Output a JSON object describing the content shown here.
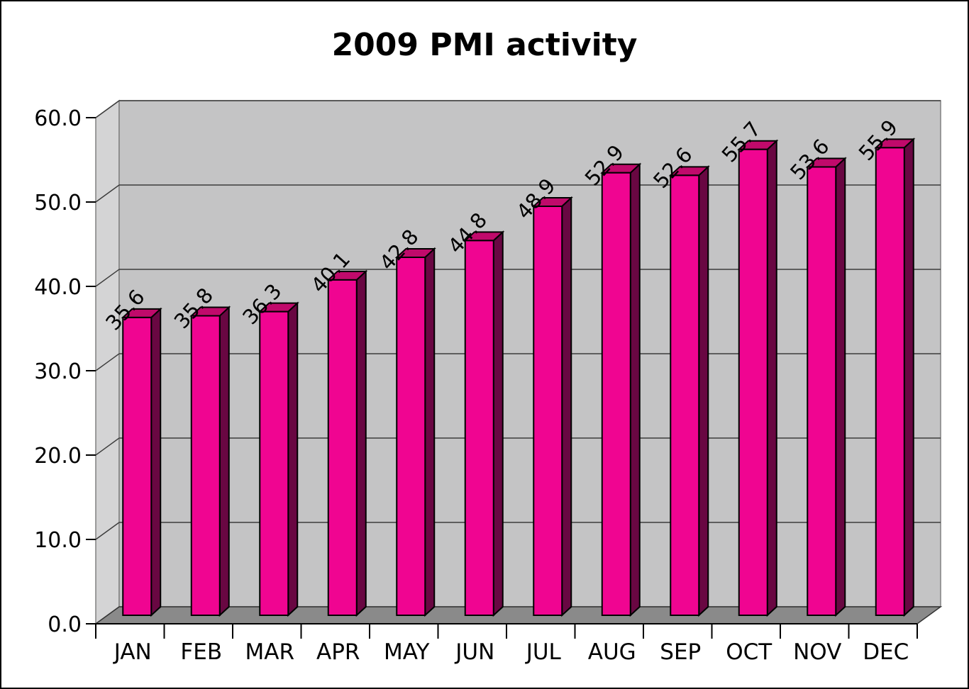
{
  "title": "2009 PMI activity",
  "chart_data": {
    "type": "bar",
    "style": "3d-column",
    "title": "2009 PMI activity",
    "categories": [
      "JAN",
      "FEB",
      "MAR",
      "APR",
      "MAY",
      "JUN",
      "JUL",
      "AUG",
      "SEP",
      "OCT",
      "NOV",
      "DEC"
    ],
    "values": [
      35.6,
      35.8,
      36.3,
      40.1,
      42.8,
      44.8,
      48.9,
      52.9,
      52.6,
      55.7,
      53.6,
      55.9
    ],
    "value_labels": [
      "35.6",
      "35.8",
      "36.3",
      "40.1",
      "42.8",
      "44.8",
      "48.9",
      "52.9",
      "52.6",
      "55.7",
      "53.6",
      "55.9"
    ],
    "xlabel": "",
    "ylabel": "",
    "ylim": [
      0,
      60
    ],
    "ytick_step": 10,
    "ytick_labels": [
      "0.0",
      "10.0",
      "20.0",
      "30.0",
      "40.0",
      "50.0",
      "60.0"
    ],
    "grid": true,
    "legend": "none",
    "colors": {
      "bar_front": "#F00591",
      "bar_side": "#690742",
      "bar_top": "#C00A6B",
      "bar_outline": "#000000",
      "back_wall": "#C4C4C5",
      "side_wall": "#D4D4D5",
      "floor": "#8A8A8A",
      "gridline": "#3C3C3C",
      "wall_edge": "#808080",
      "axis_text": "#000000",
      "background": "#FFFFFF",
      "frame_border": "#000000"
    }
  }
}
